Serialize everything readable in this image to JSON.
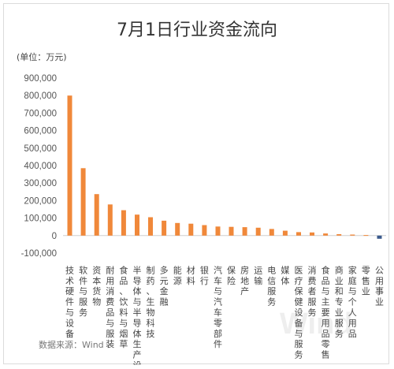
{
  "chart_data": {
    "type": "bar",
    "title": "7月1日行业资金流向",
    "unit_label": "(单位：万元)",
    "source": "数据来源：Wind",
    "watermark": "Wind",
    "ylim": [
      -100000,
      900000
    ],
    "yticks": [
      -100000,
      0,
      100000,
      200000,
      300000,
      400000,
      500000,
      600000,
      700000,
      800000,
      900000
    ],
    "ytick_labels": [
      "-100,000",
      "0",
      "100,000",
      "200,000",
      "300,000",
      "400,000",
      "500,000",
      "600,000",
      "700,000",
      "800,000",
      "900,000"
    ],
    "grid": false,
    "legend": false,
    "colors": {
      "positive": "#f0883a",
      "negative": "#3a5a8c"
    },
    "categories": [
      "技术硬件与设备",
      "软件与服务",
      "资本货物",
      "耐用消费品与服装",
      "食品、饮料与烟草",
      "半导体与半导体生产设备",
      "制药、生物科技",
      "多元金融",
      "能源",
      "材料",
      "银行",
      "汽车与汽车零部件",
      "保险",
      "房地产",
      "运输",
      "电信服务",
      "媒体",
      "医疗保健设备与服务",
      "消费者服务",
      "食品与主要用品零售",
      "商业和专业服务",
      "家庭与个人用品",
      "零售业",
      "公用事业"
    ],
    "values": [
      800000,
      385000,
      237000,
      178000,
      145000,
      120000,
      105000,
      85000,
      72000,
      68000,
      60000,
      52000,
      50000,
      48000,
      45000,
      38000,
      28000,
      20000,
      18000,
      12000,
      8000,
      6000,
      3000,
      -18000
    ]
  }
}
